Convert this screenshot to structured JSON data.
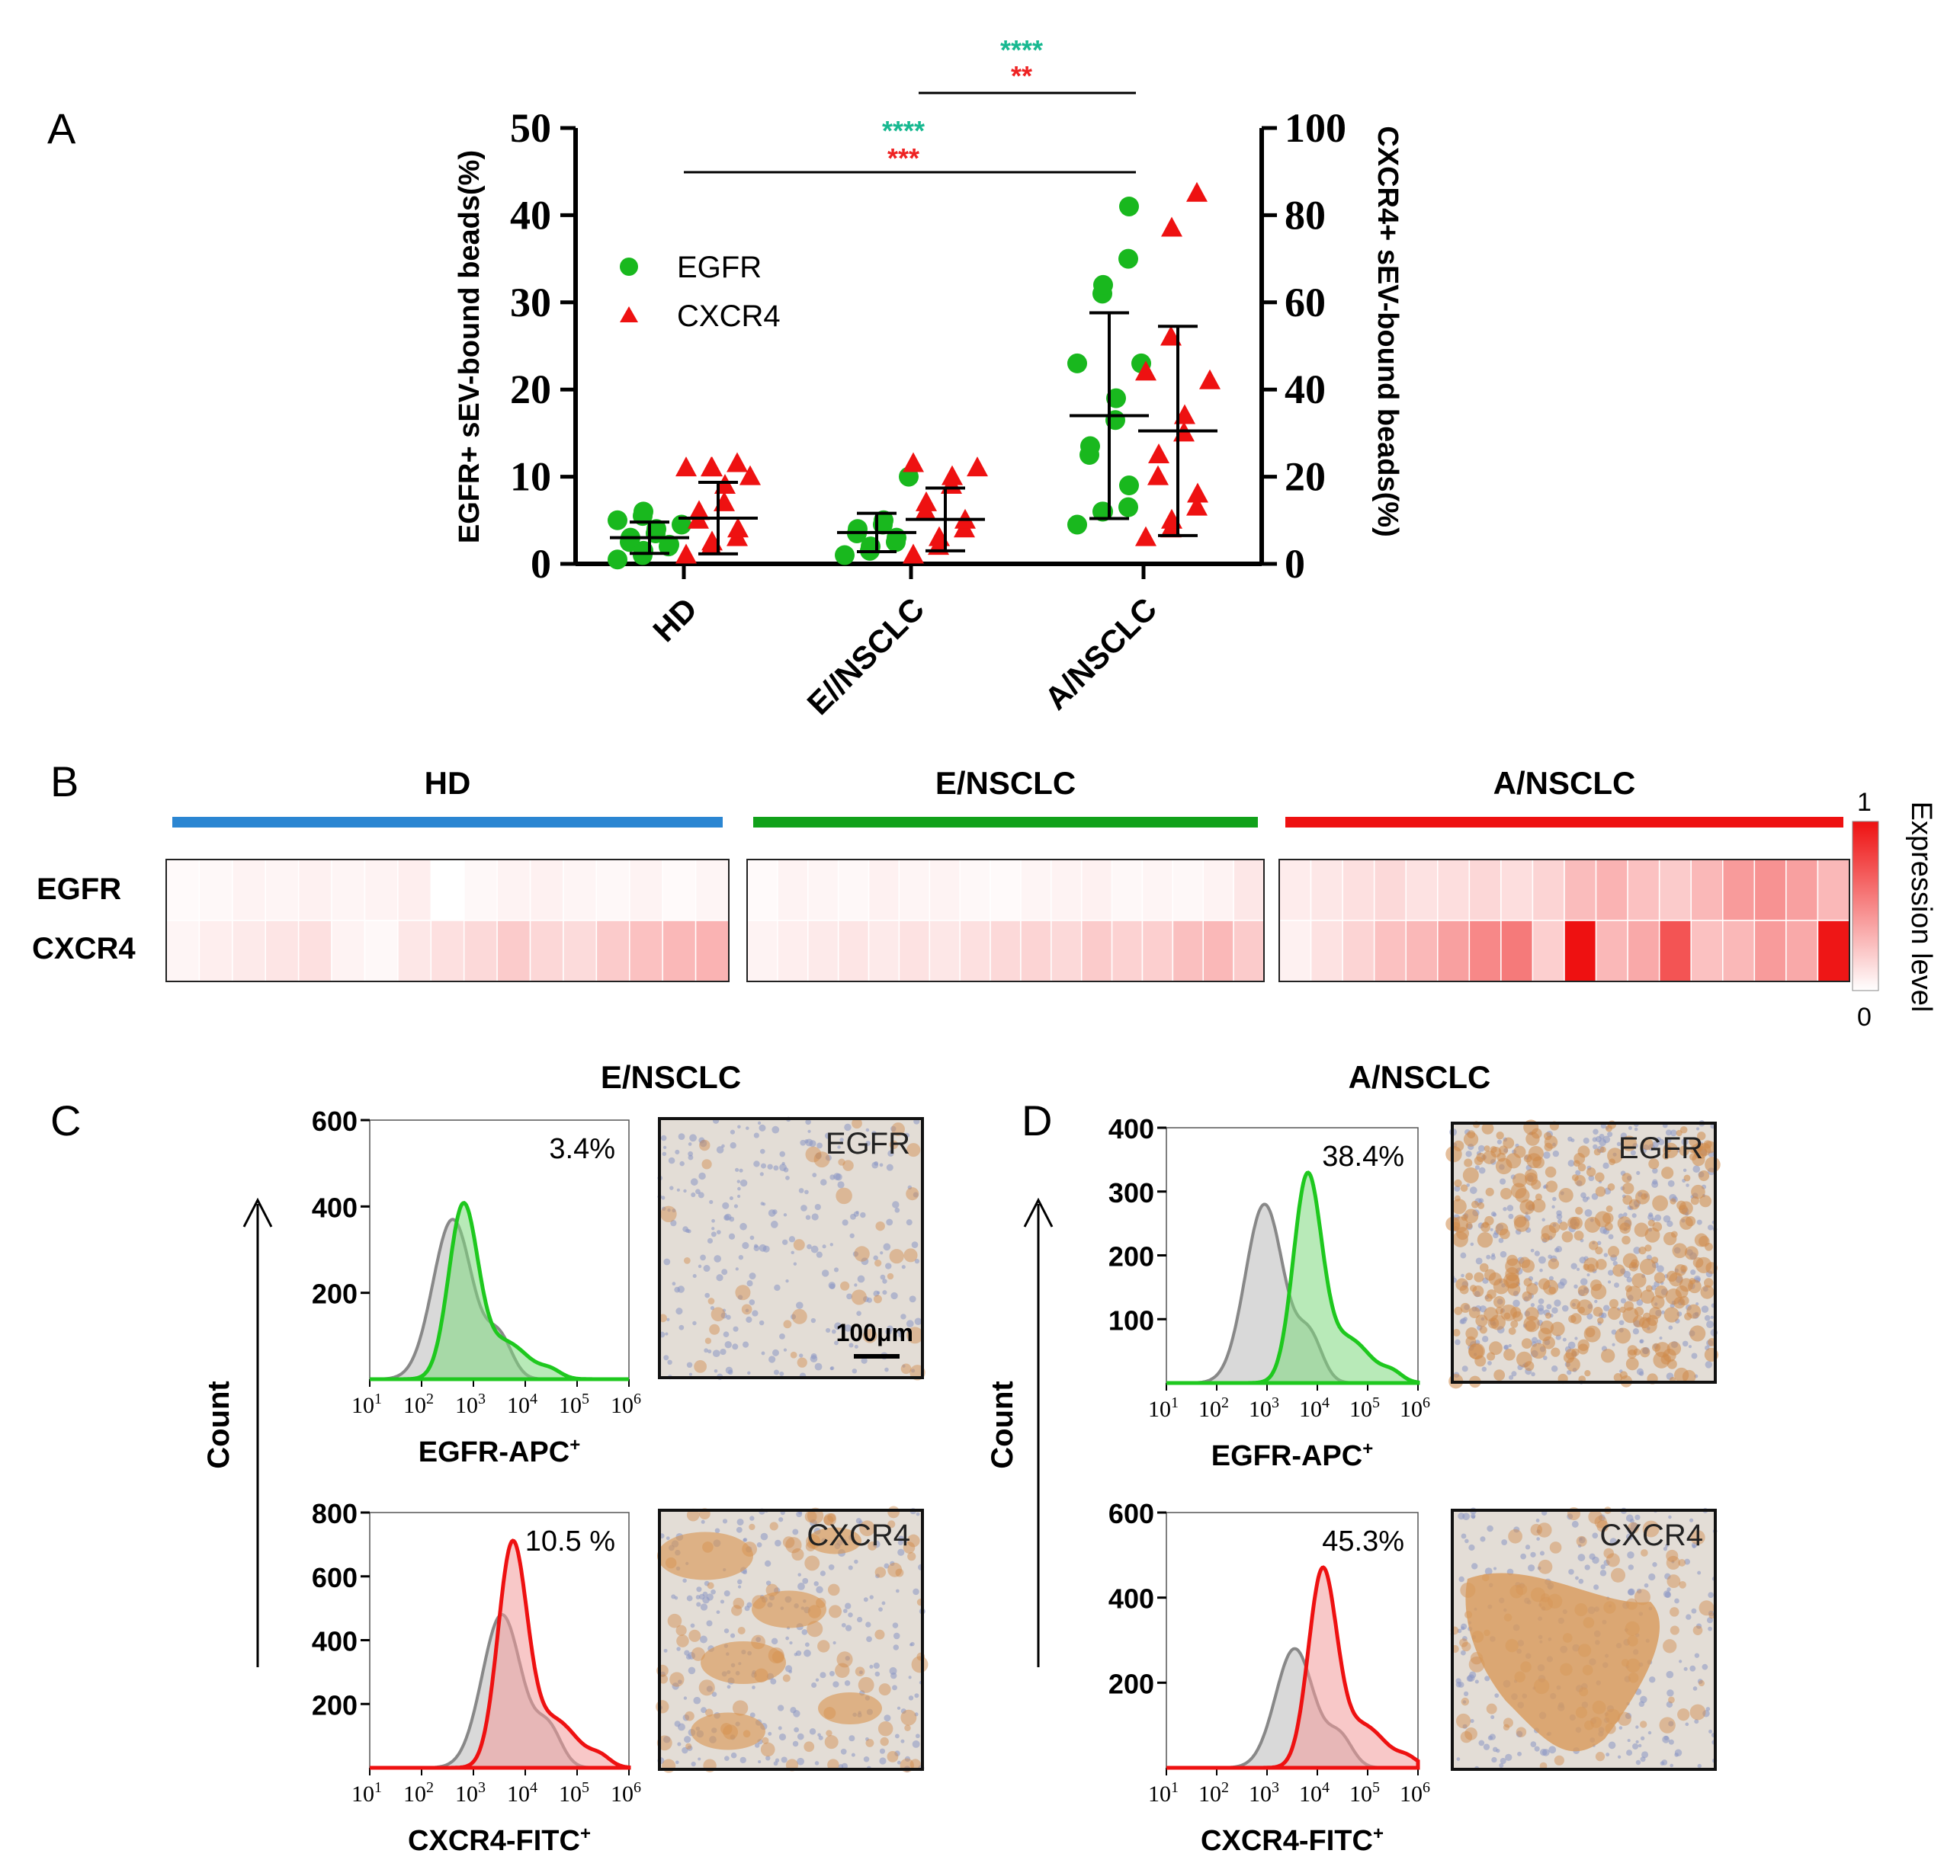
{
  "panels": {
    "A": "A",
    "B": "B",
    "C": "C",
    "D": "D"
  },
  "chart_data": [
    {
      "type": "scatter",
      "panel": "A",
      "categories": [
        "HD",
        "E//NSCLC",
        "A/NSCLC"
      ],
      "ylabel_left": "EGFR+ sEV-bound beads(%)",
      "ylabel_right": "CXCR4+ sEV-bound beads(%)",
      "ylim_left": [
        0,
        50
      ],
      "ylim_right": [
        0,
        100
      ],
      "yticks_left": [
        "0",
        "10",
        "20",
        "30",
        "40",
        "50"
      ],
      "yticks_right": [
        "0",
        "20",
        "40",
        "60",
        "80",
        "100"
      ],
      "legend": [
        {
          "name": "EGFR",
          "color": "#19b81e"
        },
        {
          "name": "CXCR4",
          "color": "#ee1111"
        }
      ],
      "series": [
        {
          "name": "EGFR",
          "axis": "left",
          "color": "#19b81e",
          "groups": [
            {
              "category": "HD",
              "mean": 3.0,
              "sd": 1.8,
              "values": [
                0.5,
                1,
                1.5,
                2,
                2.2,
                2.5,
                3,
                3.5,
                4,
                4.5,
                5,
                5.5,
                6
              ]
            },
            {
              "category": "E//NSCLC",
              "mean": 3.6,
              "sd": 2.2,
              "values": [
                1,
                1.5,
                2,
                2.5,
                3,
                3.5,
                4,
                4.5,
                5,
                10
              ]
            },
            {
              "category": "A/NSCLC",
              "mean": 17,
              "sd": 11.8,
              "values": [
                4.5,
                6,
                6,
                6.5,
                9,
                12.5,
                13.5,
                16.5,
                19,
                23,
                23,
                31,
                32,
                35,
                41
              ]
            }
          ]
        },
        {
          "name": "CXCR4",
          "axis": "right",
          "color": "#ee1111",
          "groups": [
            {
              "category": "HD",
              "mean": 10.5,
              "sd": 8.2,
              "values": [
                2,
                4,
                5,
                6,
                8,
                10,
                12,
                14,
                18,
                20,
                22,
                22,
                22,
                23
              ]
            },
            {
              "category": "E//NSCLC",
              "mean": 10.2,
              "sd": 7.2,
              "values": [
                2,
                4,
                6,
                8,
                10,
                12,
                14,
                18,
                20,
                22,
                23
              ]
            },
            {
              "category": "A/NSCLC",
              "mean": 30.5,
              "sd": 24,
              "values": [
                6,
                8,
                10,
                13,
                16,
                20,
                25,
                30,
                34,
                42,
                44,
                52,
                77,
                85
              ]
            }
          ]
        }
      ],
      "significance": [
        {
          "from": "E//NSCLC",
          "to": "A/NSCLC",
          "egfr": "****",
          "cxcr4": "**"
        },
        {
          "from": "HD",
          "to": "A/NSCLC",
          "egfr": "****",
          "cxcr4": "***"
        }
      ]
    },
    {
      "type": "heatmap",
      "panel": "B",
      "groups": [
        "HD",
        "E/NSCLC",
        "A/NSCLC"
      ],
      "group_colors": [
        "#2b86d2",
        "#11a11a",
        "#ee1111"
      ],
      "rows": [
        "EGFR",
        "CXCR4"
      ],
      "colorbar": {
        "max_label": "1",
        "min_label": "0",
        "label": "Expression level"
      },
      "values": {
        "HD": {
          "EGFR": [
            0.02,
            0.03,
            0.05,
            0.04,
            0.06,
            0.04,
            0.05,
            0.07,
            0.0,
            0.03,
            0.05,
            0.06,
            0.04,
            0.03,
            0.05,
            0.02,
            0.04
          ],
          "CXCR4": [
            0.04,
            0.07,
            0.09,
            0.11,
            0.13,
            0.05,
            0.03,
            0.1,
            0.13,
            0.16,
            0.22,
            0.17,
            0.15,
            0.22,
            0.26,
            0.3,
            0.32
          ]
        },
        "E/NSCLC": {
          "EGFR": [
            0.02,
            0.05,
            0.04,
            0.03,
            0.06,
            0.04,
            0.05,
            0.03,
            0.02,
            0.04,
            0.05,
            0.06,
            0.03,
            0.04,
            0.03,
            0.05,
            0.1
          ],
          "CXCR4": [
            0.05,
            0.07,
            0.09,
            0.11,
            0.09,
            0.12,
            0.1,
            0.13,
            0.16,
            0.18,
            0.16,
            0.22,
            0.19,
            0.2,
            0.27,
            0.3,
            0.22
          ]
        },
        "A/NSCLC": {
          "EGFR": [
            0.08,
            0.1,
            0.13,
            0.16,
            0.12,
            0.14,
            0.17,
            0.14,
            0.18,
            0.28,
            0.32,
            0.26,
            0.22,
            0.3,
            0.42,
            0.46,
            0.4,
            0.3
          ],
          "CXCR4": [
            0.06,
            0.12,
            0.18,
            0.26,
            0.3,
            0.4,
            0.5,
            0.56,
            0.2,
            1.0,
            0.3,
            0.36,
            0.72,
            0.26,
            0.3,
            0.42,
            0.36,
            0.98
          ]
        }
      }
    },
    {
      "type": "histogram",
      "panel": "C",
      "group_title": "E/NSCLC",
      "count_label": "Count",
      "plots": [
        {
          "name": "egfr",
          "xlabel": "EGFR-APC",
          "xlabel_sup": "+",
          "percent": "3.4%",
          "ylim": [
            0,
            600
          ],
          "yticks": [
            "200",
            "400",
            "600"
          ],
          "color": "#1ec81e",
          "fill": "#7ed87e",
          "peak_log": 2.8,
          "peak": 390,
          "control_peak_log": 2.6,
          "control_peak": 370,
          "ihc": {
            "label": "EGFR",
            "scale_label": "100μm",
            "stain": "light"
          }
        },
        {
          "name": "cxcr4",
          "xlabel": "CXCR4-FITC",
          "xlabel_sup": "+",
          "percent": "10.5 %",
          "ylim": [
            0,
            800
          ],
          "yticks": [
            "200",
            "400",
            "600",
            "800"
          ],
          "color": "#ee1111",
          "fill": "#f29a9a",
          "peak_log": 3.75,
          "peak": 680,
          "control_peak_log": 3.55,
          "control_peak": 480,
          "ihc": {
            "label": "CXCR4",
            "scale_label": "",
            "stain": "patchy"
          }
        }
      ],
      "xtick_base": "10",
      "xtick_exps": [
        "1",
        "2",
        "3",
        "4",
        "5",
        "6"
      ]
    },
    {
      "type": "histogram",
      "panel": "D",
      "group_title": "A/NSCLC",
      "count_label": "Count",
      "plots": [
        {
          "name": "egfr",
          "xlabel": "EGFR-APC",
          "xlabel_sup": "+",
          "percent": "38.4%",
          "ylim": [
            0,
            400
          ],
          "yticks": [
            "100",
            "200",
            "300",
            "400"
          ],
          "color": "#1ec81e",
          "fill": "#7ed87e",
          "peak_log": 3.8,
          "peak": 315,
          "control_peak_log": 2.95,
          "control_peak": 280,
          "ihc": {
            "label": "EGFR",
            "scale_label": "",
            "stain": "dense"
          }
        },
        {
          "name": "cxcr4",
          "xlabel": "CXCR4-FITC",
          "xlabel_sup": "+",
          "percent": "45.3%",
          "ylim": [
            0,
            600
          ],
          "yticks": [
            "200",
            "400",
            "600"
          ],
          "color": "#ee1111",
          "fill": "#f29a9a",
          "peak_log": 4.1,
          "peak": 450,
          "control_peak_log": 3.55,
          "control_peak": 280,
          "ihc": {
            "label": "CXCR4",
            "scale_label": "",
            "stain": "blob"
          }
        }
      ],
      "xtick_base": "10",
      "xtick_exps": [
        "1",
        "2",
        "3",
        "4",
        "5",
        "6"
      ]
    }
  ]
}
